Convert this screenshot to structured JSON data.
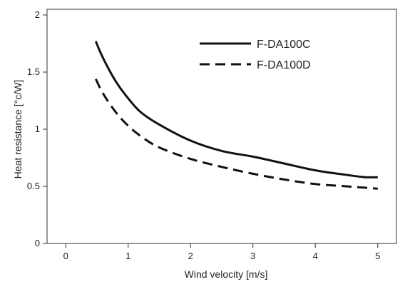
{
  "chart_data": {
    "type": "line",
    "xlabel": "Wind velocity [m/s]",
    "ylabel": "Heat resistance [°c/W]",
    "xlim": [
      -0.3,
      5.3
    ],
    "ylim": [
      0,
      2.05
    ],
    "xticks": [
      0,
      1,
      2,
      3,
      4,
      5
    ],
    "xtick_labels": [
      "0",
      "1",
      "2",
      "3",
      "4",
      "5"
    ],
    "yticks": [
      0,
      0.5,
      1,
      1.5,
      2
    ],
    "ytick_labels": [
      "0",
      "0.5",
      "1",
      "1.5",
      "2"
    ],
    "grid": false,
    "legend_position": "top-right",
    "series": [
      {
        "name": "F-DA100C",
        "line_style": "solid",
        "color": "#111111",
        "x": [
          0.48,
          0.6,
          0.8,
          1.0,
          1.2,
          1.5,
          2.0,
          2.5,
          3.0,
          3.5,
          4.0,
          4.5,
          4.8,
          5.0
        ],
        "y": [
          1.77,
          1.62,
          1.42,
          1.27,
          1.15,
          1.04,
          0.9,
          0.81,
          0.76,
          0.7,
          0.64,
          0.6,
          0.58,
          0.58
        ]
      },
      {
        "name": "F-DA100D",
        "line_style": "dashed",
        "color": "#111111",
        "x": [
          0.48,
          0.6,
          0.8,
          1.0,
          1.2,
          1.5,
          2.0,
          2.5,
          3.0,
          3.5,
          4.0,
          4.5,
          5.0
        ],
        "y": [
          1.44,
          1.31,
          1.15,
          1.03,
          0.94,
          0.84,
          0.74,
          0.67,
          0.61,
          0.56,
          0.52,
          0.5,
          0.48
        ]
      }
    ]
  }
}
